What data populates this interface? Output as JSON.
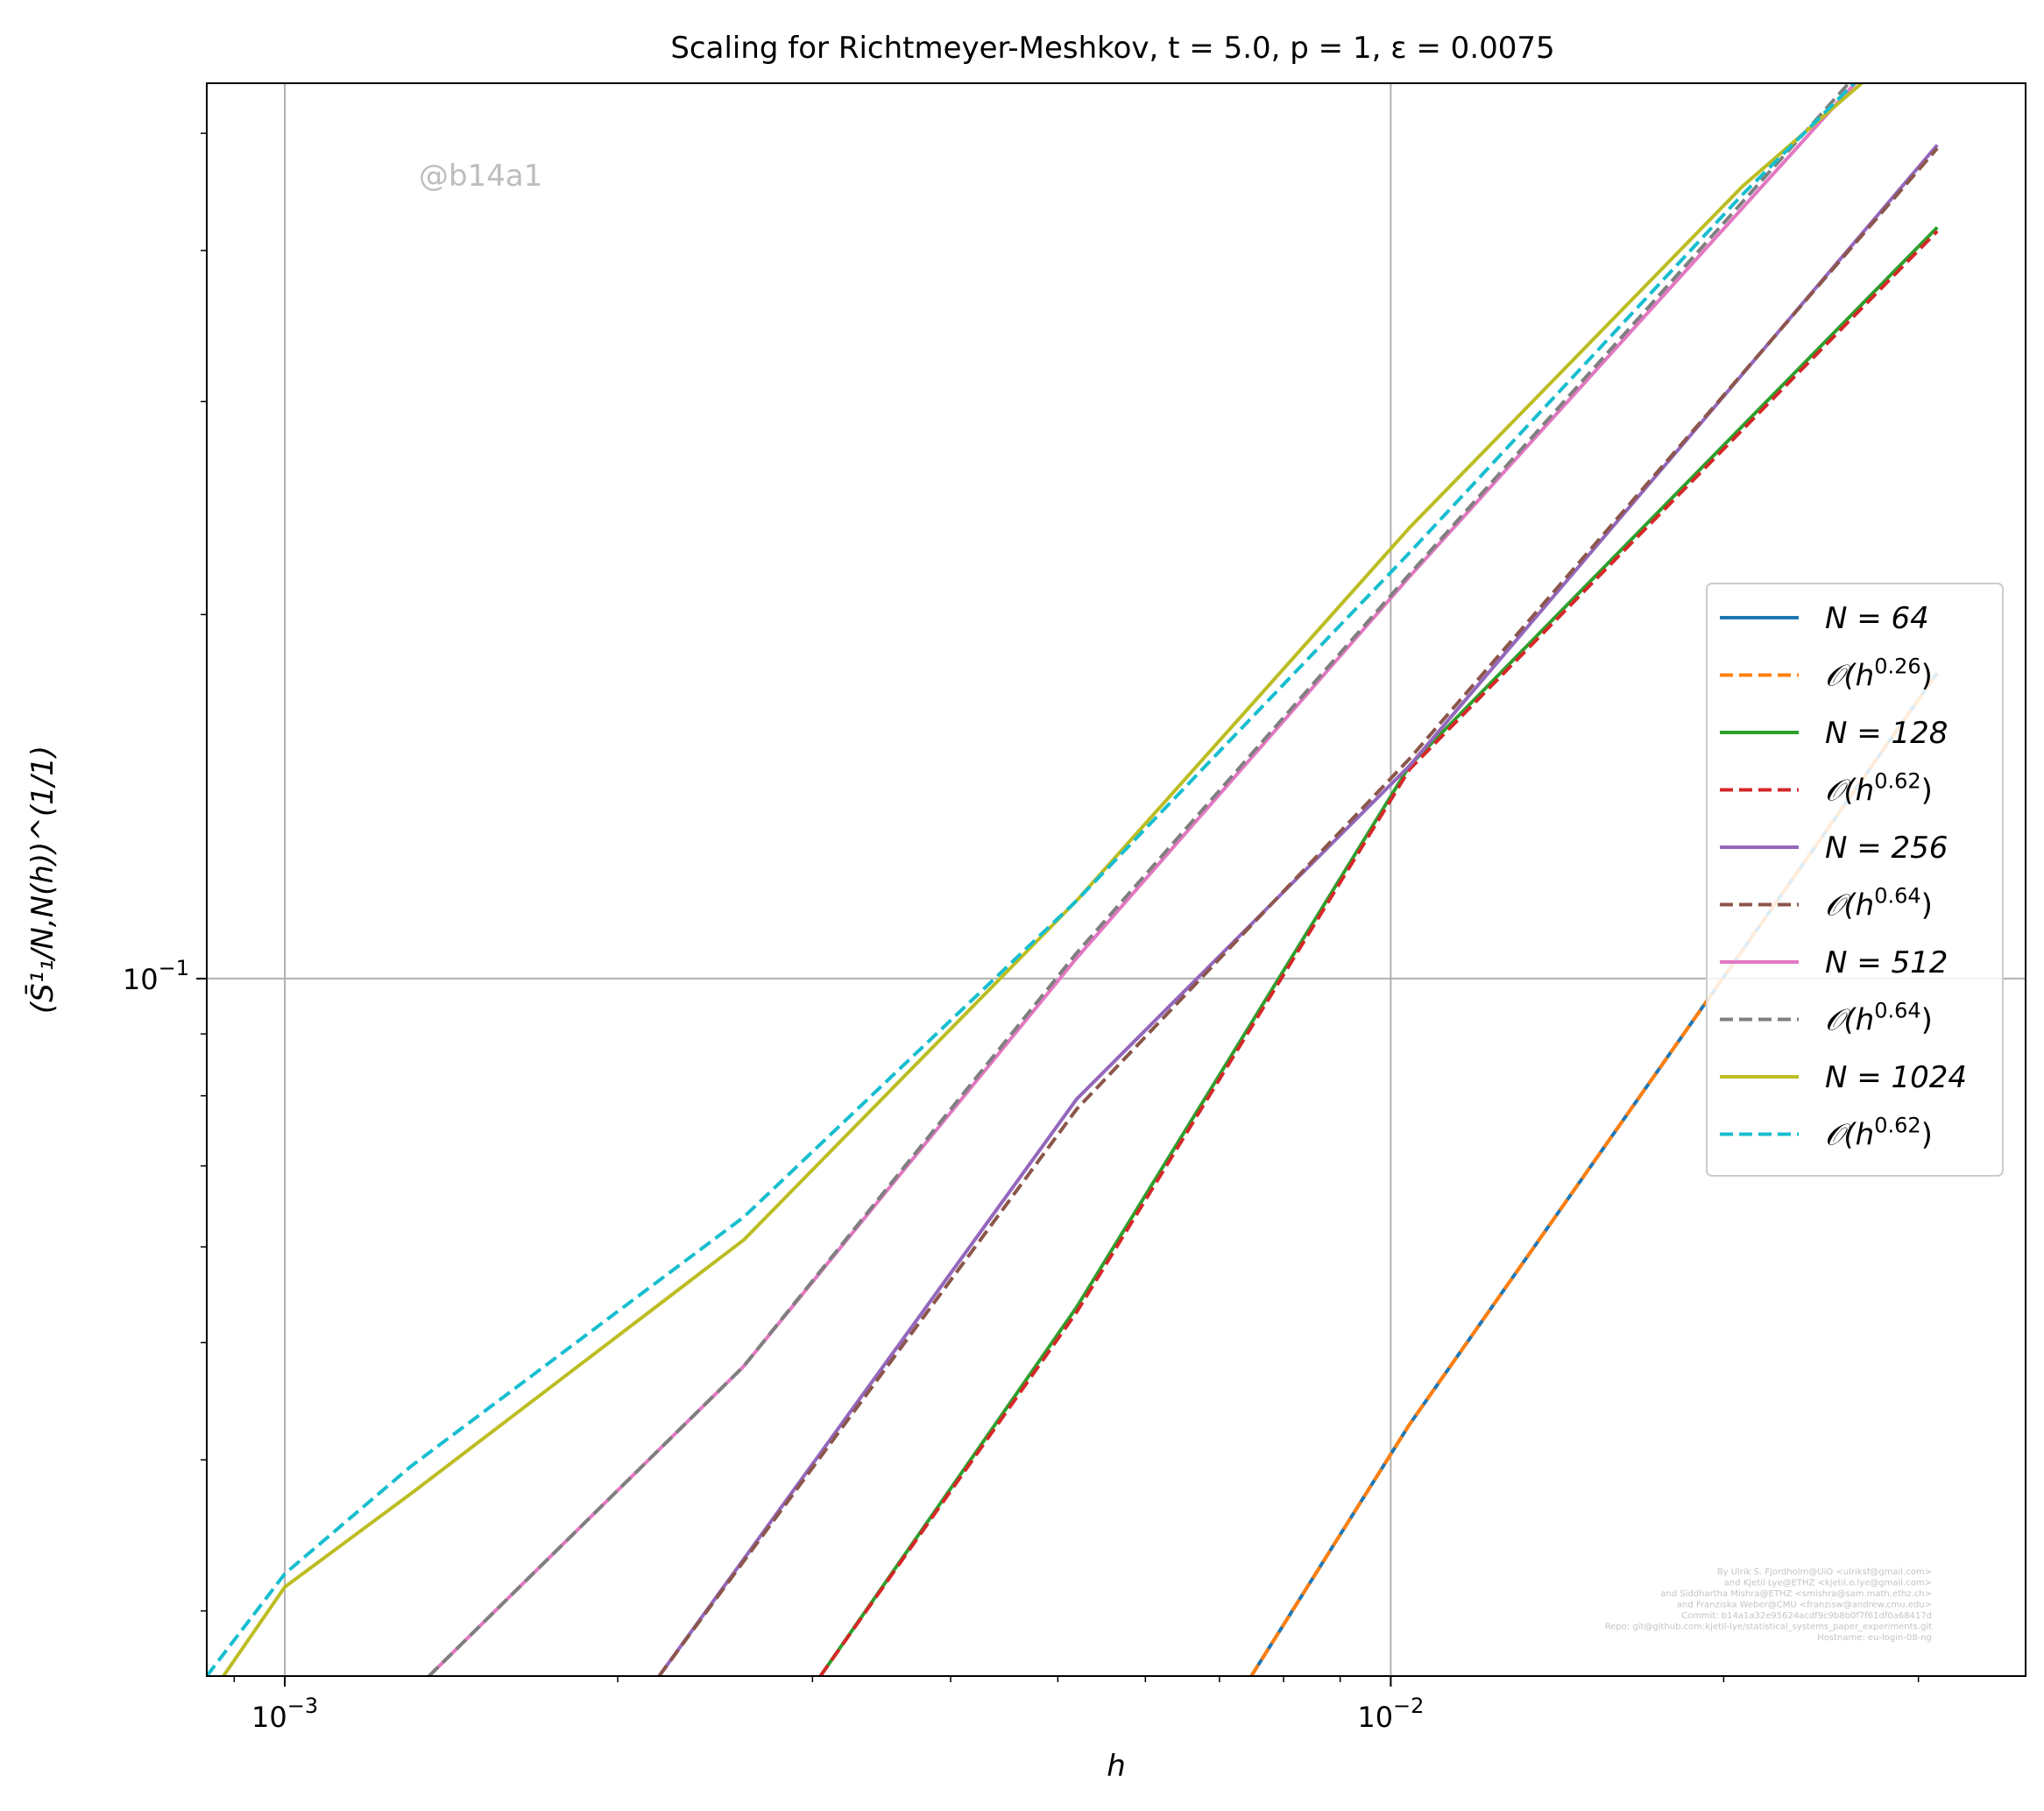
{
  "chart_data": {
    "type": "line",
    "title": "Scaling for Richtmeyer-Meshkov, t = 5.0, p = 1, ε = 0.0075",
    "xlabel": "h",
    "ylabel": "(S̄¹₁/N,N(h))^(1/1)",
    "xscale": "log",
    "yscale": "log",
    "xlim": [
      0.00085,
      0.0375
    ],
    "ylim": [
      0.0265,
      0.55
    ],
    "x_ticks": [
      {
        "value": 0.001,
        "label_base": "10",
        "label_exp": "−3"
      },
      {
        "value": 0.01,
        "label_base": "10",
        "label_exp": "−2"
      }
    ],
    "y_ticks": [
      {
        "value": 0.1,
        "label_base": "10",
        "label_exp": "−1"
      }
    ],
    "grid": true,
    "legend_position": "center-right",
    "series": [
      {
        "name": "N = 64",
        "label_main": "N = 64",
        "label_sup": "",
        "label_end": "",
        "style": "solid",
        "color": "#1f77b4",
        "x": [
          0.00748,
          0.0104,
          0.0312
        ],
        "y": [
          0.0265,
          0.0428,
          0.179
        ]
      },
      {
        "name": "O(h^0.26)",
        "label_main": "𝒪(h",
        "label_sup": "0.26",
        "label_end": ")",
        "style": "dashed",
        "color": "#ff7f0e",
        "x": [
          0.00748,
          0.0104,
          0.0312
        ],
        "y": [
          0.0265,
          0.0428,
          0.179
        ]
      },
      {
        "name": "N = 128",
        "label_main": "N = 128",
        "label_sup": "",
        "label_end": "",
        "style": "solid",
        "color": "#2ca02c",
        "x": [
          0.00305,
          0.0052,
          0.0104,
          0.0312
        ],
        "y": [
          0.0265,
          0.0535,
          0.15,
          0.418
        ]
      },
      {
        "name": "O(h^0.62)",
        "label_main": "𝒪(h",
        "label_sup": "0.62",
        "label_end": ")",
        "style": "dashed",
        "color": "#d62728",
        "x": [
          0.00305,
          0.0052,
          0.0104,
          0.0312
        ],
        "y": [
          0.0265,
          0.053,
          0.149,
          0.415
        ]
      },
      {
        "name": "N = 256",
        "label_main": "N = 256",
        "label_sup": "",
        "label_end": "",
        "style": "solid",
        "color": "#9467bd",
        "x": [
          0.00218,
          0.0052,
          0.0104,
          0.0312
        ],
        "y": [
          0.0265,
          0.0795,
          0.15,
          0.489
        ]
      },
      {
        "name": "O(h^0.64)",
        "label_main": "𝒪(h",
        "label_sup": "0.64",
        "label_end": ")",
        "style": "dashed",
        "color": "#8c564b",
        "x": [
          0.00218,
          0.0052,
          0.0104,
          0.0312
        ],
        "y": [
          0.0265,
          0.078,
          0.152,
          0.486
        ]
      },
      {
        "name": "N = 512",
        "label_main": "N = 512",
        "label_sup": "",
        "label_end": "",
        "style": "solid",
        "color": "#e377c2",
        "x": [
          0.00135,
          0.0026,
          0.0052,
          0.0104,
          0.0312
        ],
        "y": [
          0.0265,
          0.0478,
          0.104,
          0.215,
          0.654
        ]
      },
      {
        "name": "O(h^0.64)",
        "label_main": "𝒪(h",
        "label_sup": "0.64",
        "label_end": ")",
        "style": "dashed",
        "color": "#7f7f7f",
        "x": [
          0.00135,
          0.0026,
          0.0052,
          0.0104,
          0.0312
        ],
        "y": [
          0.0265,
          0.0478,
          0.105,
          0.216,
          0.664
        ]
      },
      {
        "name": "N = 1024",
        "label_main": "N = 1024",
        "label_sup": "",
        "label_end": "",
        "style": "solid",
        "color": "#bcbd22",
        "x": [
          0.00088,
          0.001,
          0.0013,
          0.0026,
          0.0052,
          0.0104,
          0.0208,
          0.0312
        ],
        "y": [
          0.0265,
          0.0314,
          0.0375,
          0.0608,
          0.116,
          0.236,
          0.452,
          0.623
        ]
      },
      {
        "name": "O(h^0.62)",
        "label_main": "𝒪(h",
        "label_sup": "0.62",
        "label_end": ")",
        "style": "dashed",
        "color": "#17becf",
        "x": [
          0.00085,
          0.001,
          0.0013,
          0.0026,
          0.0052,
          0.0104,
          0.0208,
          0.0312
        ],
        "y": [
          0.0265,
          0.0322,
          0.0395,
          0.0635,
          0.116,
          0.225,
          0.445,
          0.644
        ]
      }
    ],
    "annotations": {
      "watermark": "@b14a1",
      "credits": [
        "By Ulrik S. Fjordholm@UiO <ulriksf@gmail.com>",
        "and Kjetil Lye@ETHZ <kjetil.o.lye@gmail.com>",
        "and Siddhartha Mishra@ETHZ <smishra@sam.math.ethz.ch>",
        "and Franziska Weber@CMU <franzisw@andrew.cmu.edu>",
        "Commit: b14a1a32e95624acdf9c9b8b0f7f61df0a68417d",
        "Repo: git@github.com:kjetil-lye/statistical_systems_paper_experiments.git",
        "Hostname: eu-login-08-ng"
      ]
    },
    "colors": {
      "grid": "#b0b0b0",
      "axes": "#000000"
    }
  }
}
